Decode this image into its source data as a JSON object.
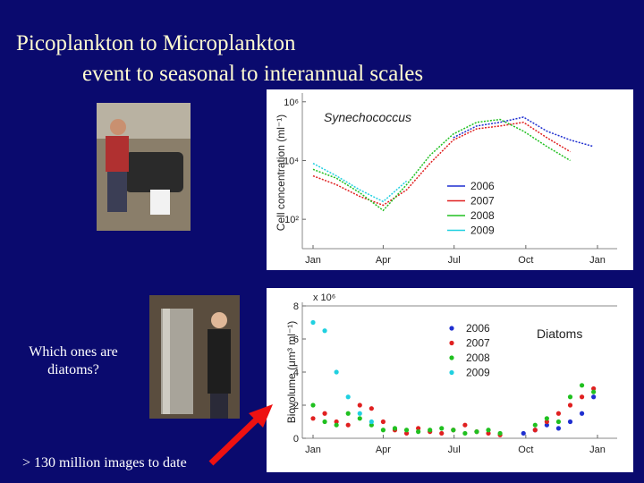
{
  "slide": {
    "title_line1": "Picoplankton to Microplankton",
    "title_line2": "event to seasonal to interannual scales",
    "question_line1": "Which ones are",
    "question_line2": "diatoms?",
    "footer": "> 130 million images to date"
  },
  "chart_data": [
    {
      "type": "line",
      "annotation": "Synechococcus",
      "ylabel": "Cell concentration (ml⁻¹)",
      "log_y": true,
      "legend": "right",
      "x": [
        0,
        30,
        60,
        90,
        120,
        150,
        180,
        210,
        240,
        270,
        300,
        330,
        360
      ],
      "xlim": [
        0,
        365
      ],
      "xticks": [
        {
          "value": 0,
          "label": "Jan"
        },
        {
          "value": 90,
          "label": "Apr"
        },
        {
          "value": 181,
          "label": "Jul"
        },
        {
          "value": 273,
          "label": "Oct"
        },
        {
          "value": 365,
          "label": "Jan"
        }
      ],
      "ylim": [
        10,
        1500000
      ],
      "yticks": [
        {
          "value": 100,
          "label": "10²"
        },
        {
          "value": 10000,
          "label": "10⁴"
        },
        {
          "value": 1000000,
          "label": "10⁶"
        }
      ],
      "series": [
        {
          "name": "2006",
          "color": "#1f2fd0",
          "values": [
            null,
            null,
            null,
            null,
            null,
            null,
            60000,
            150000,
            200000,
            300000,
            100000,
            50000,
            30000
          ]
        },
        {
          "name": "2007",
          "color": "#e02020",
          "values": [
            3000,
            1500,
            600,
            300,
            1000,
            8000,
            50000,
            120000,
            150000,
            200000,
            60000,
            20000,
            null
          ]
        },
        {
          "name": "2008",
          "color": "#20c020",
          "values": [
            5000,
            2500,
            800,
            200,
            1500,
            15000,
            80000,
            200000,
            250000,
            100000,
            30000,
            10000,
            null
          ]
        },
        {
          "name": "2009",
          "color": "#20d0e0",
          "values": [
            8000,
            3000,
            1000,
            400,
            2000,
            null,
            null,
            null,
            null,
            null,
            null,
            null,
            null
          ]
        }
      ]
    },
    {
      "type": "scatter",
      "annotation": "Diatoms",
      "ylabel": "Biovolume (μm³ ml⁻¹)",
      "y_multiplier": "x 10⁶",
      "log_y": false,
      "legend": "right",
      "x": [
        0,
        15,
        30,
        45,
        60,
        75,
        90,
        105,
        120,
        135,
        150,
        165,
        180,
        195,
        210,
        225,
        240,
        255,
        270,
        285,
        300,
        315,
        330,
        345,
        360
      ],
      "xlim": [
        0,
        365
      ],
      "xticks": [
        {
          "value": 0,
          "label": "Jan"
        },
        {
          "value": 90,
          "label": "Apr"
        },
        {
          "value": 181,
          "label": "Jul"
        },
        {
          "value": 273,
          "label": "Oct"
        },
        {
          "value": 365,
          "label": "Jan"
        }
      ],
      "ylim": [
        0,
        8
      ],
      "yticks": [
        0,
        2,
        4,
        6,
        8
      ],
      "series": [
        {
          "name": "2006",
          "color": "#1f2fd0",
          "values": [
            null,
            null,
            null,
            null,
            null,
            null,
            null,
            null,
            null,
            null,
            null,
            null,
            null,
            null,
            null,
            null,
            null,
            null,
            0.3,
            0.5,
            0.8,
            0.6,
            1.0,
            1.5,
            2.5
          ]
        },
        {
          "name": "2007",
          "color": "#e02020",
          "values": [
            1.2,
            1.5,
            1.0,
            0.8,
            2.0,
            1.8,
            1.0,
            0.5,
            0.3,
            0.6,
            0.4,
            0.3,
            0.5,
            0.8,
            0.4,
            0.3,
            0.2,
            null,
            null,
            0.5,
            1.0,
            1.5,
            2.0,
            2.5,
            3.0
          ]
        },
        {
          "name": "2008",
          "color": "#20c020",
          "values": [
            2.0,
            1.0,
            0.8,
            1.5,
            1.2,
            0.8,
            0.5,
            0.6,
            0.5,
            0.4,
            0.5,
            0.6,
            0.5,
            0.3,
            0.4,
            0.5,
            0.3,
            null,
            null,
            0.8,
            1.2,
            1.0,
            2.5,
            3.2,
            2.8
          ]
        },
        {
          "name": "2009",
          "color": "#20d0e0",
          "values": [
            7.0,
            6.5,
            4.0,
            2.5,
            1.5,
            1.0,
            null,
            null,
            null,
            null,
            null,
            null,
            null,
            null,
            null,
            null,
            null,
            null,
            null,
            null,
            null,
            null,
            null,
            null,
            null
          ]
        }
      ]
    }
  ]
}
